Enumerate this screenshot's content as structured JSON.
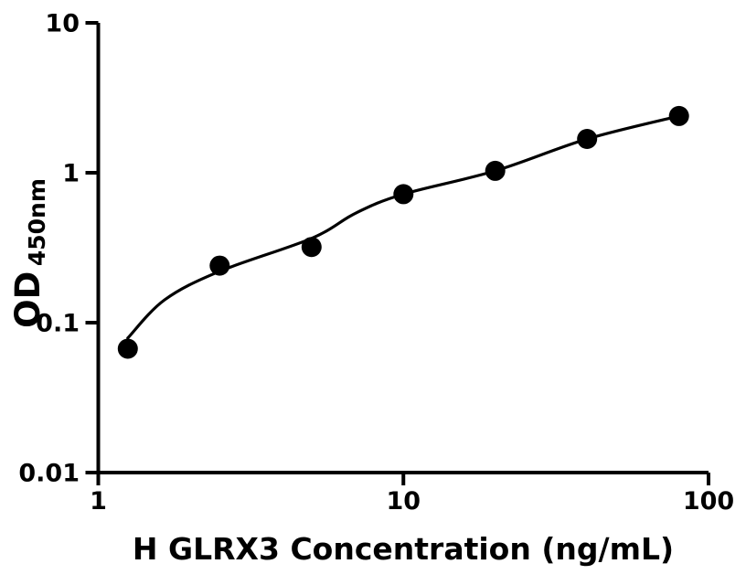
{
  "chart_data": {
    "type": "scatter",
    "title": "",
    "xlabel": "H GLRX3 Concentration (ng/mL)",
    "ylabel": "OD",
    "ylabel_subscript": "450nm",
    "x_scale": "log",
    "y_scale": "log",
    "xlim": [
      1,
      100
    ],
    "ylim": [
      0.01,
      10
    ],
    "x_ticks": [
      1,
      10,
      100
    ],
    "x_tick_labels": [
      "1",
      "10",
      "100"
    ],
    "y_ticks": [
      10,
      1,
      0.1,
      0.01
    ],
    "y_tick_labels": [
      "10",
      "1",
      "0.1",
      "0.01"
    ],
    "grid": false,
    "legend_position": "none",
    "background_color": "#ffffff",
    "axis_color": "#000000",
    "marker_color": "#000000",
    "line_color": "#000000",
    "series": [
      {
        "name": "standard-data-points",
        "marker": "circle",
        "x": [
          1.25,
          2.5,
          5,
          10,
          20,
          40,
          80
        ],
        "y": [
          0.067,
          0.24,
          0.32,
          0.72,
          1.03,
          1.68,
          2.39
        ]
      }
    ],
    "fit_curve": {
      "name": "fitted-standard-curve",
      "x": [
        1.25,
        1.65,
        2.5,
        5,
        7,
        10,
        20,
        40,
        80
      ],
      "y": [
        0.079,
        0.142,
        0.22,
        0.365,
        0.54,
        0.72,
        1.03,
        1.68,
        2.39
      ]
    }
  }
}
